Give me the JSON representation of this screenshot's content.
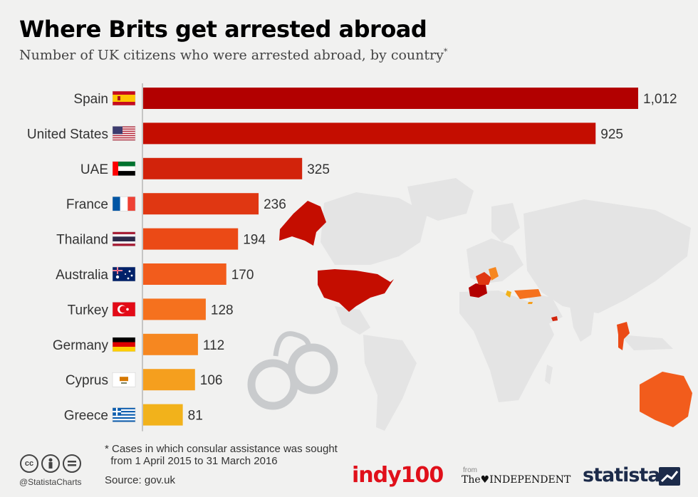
{
  "title": "Where Brits get arrested abroad",
  "subtitle": "Number of UK citizens who were arrested abroad, by country",
  "subtitle_mark": "*",
  "footnote": "* Cases in which consular assistance was sought\n  from 1 April 2015 to 31 March 2016",
  "source": "Source: gov.uk",
  "handle": "@StatistaCharts",
  "logos": {
    "indy": "indy100",
    "from": "from",
    "independent": "The♥INDEPENDENT",
    "statista": "statista"
  },
  "license_icons": [
    "cc-icon",
    "by-icon",
    "nd-icon"
  ],
  "chart_data": {
    "type": "bar",
    "orientation": "horizontal",
    "title": "Where Brits get arrested abroad",
    "subtitle": "Number of UK citizens who were arrested abroad, by country",
    "categories": [
      "Spain",
      "United States",
      "UAE",
      "France",
      "Thailand",
      "Australia",
      "Turkey",
      "Germany",
      "Cyprus",
      "Greece"
    ],
    "values": [
      1012,
      925,
      325,
      236,
      194,
      170,
      128,
      112,
      106,
      81
    ],
    "value_labels": [
      "1,012",
      "925",
      "325",
      "236",
      "194",
      "170",
      "128",
      "112",
      "106",
      "81"
    ],
    "colors": [
      "#b20000",
      "#c40d00",
      "#d2230b",
      "#e03712",
      "#eb4a16",
      "#f25c1c",
      "#f5711e",
      "#f68720",
      "#f59f1e",
      "#f2b21b"
    ],
    "xlim": [
      0,
      1012
    ],
    "grid": false,
    "legend": "none"
  }
}
